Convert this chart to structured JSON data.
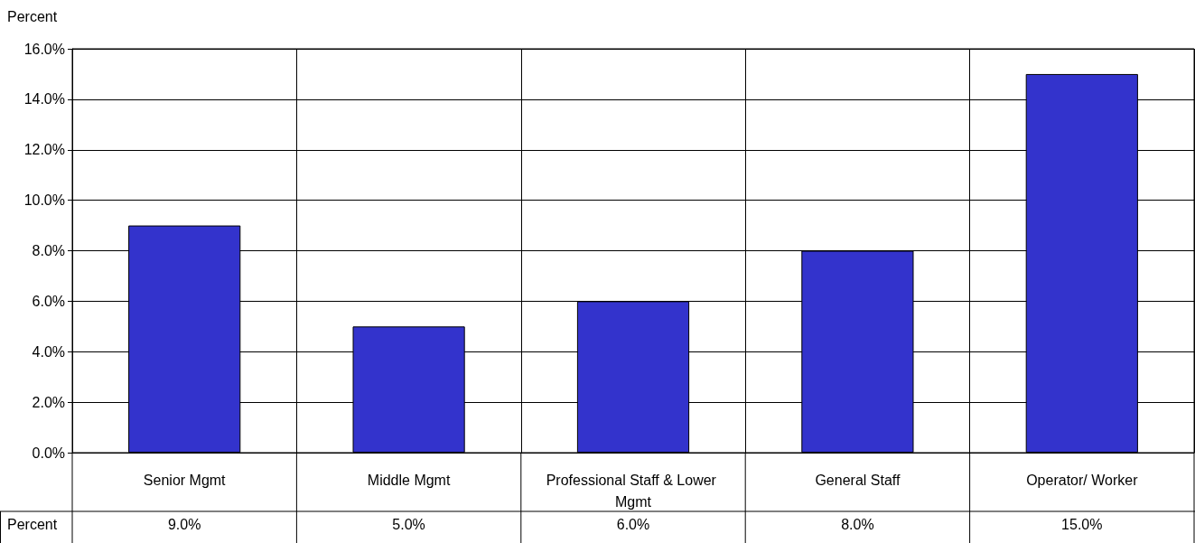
{
  "chart_data": {
    "type": "bar",
    "ylabel": "Percent",
    "categories": [
      "Senior Mgmt",
      "Middle Mgmt",
      "Professional Staff & Lower Mgmt",
      "General Staff",
      "Operator/ Worker"
    ],
    "series": [
      {
        "name": "Percent",
        "color": "#3333cc",
        "values": [
          9,
          5,
          6,
          8,
          15
        ],
        "value_labels": [
          "9.0%",
          "5.0%",
          "6.0%",
          "8.0%",
          "15.0%"
        ]
      }
    ],
    "ylim": [
      0,
      16
    ],
    "yticks": [
      {
        "value": 0,
        "label": "0.0%"
      },
      {
        "value": 2,
        "label": "2.0%"
      },
      {
        "value": 4,
        "label": "4.0%"
      },
      {
        "value": 6,
        "label": "6.0%"
      },
      {
        "value": 8,
        "label": "8.0%"
      },
      {
        "value": 10,
        "label": "10.0%"
      },
      {
        "value": 12,
        "label": "12.0%"
      },
      {
        "value": 14,
        "label": "14.0%"
      },
      {
        "value": 16,
        "label": "16.0%"
      }
    ],
    "grid": true
  }
}
